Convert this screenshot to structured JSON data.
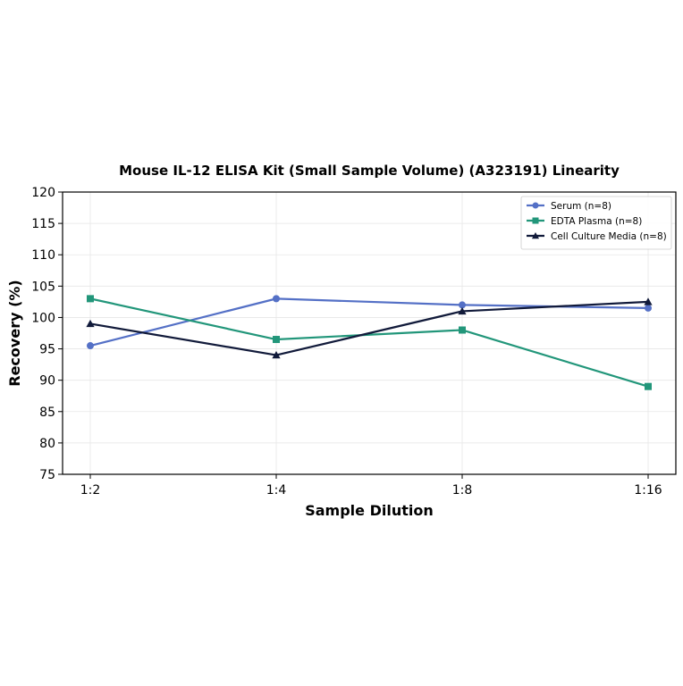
{
  "chart_data": {
    "type": "line",
    "title": "Mouse IL-12 ELISA Kit (Small Sample Volume) (A323191) Linearity",
    "xlabel": "Sample Dilution",
    "ylabel": "Recovery (%)",
    "categories": [
      "1:2",
      "1:4",
      "1:8",
      "1:16"
    ],
    "ylim": [
      75,
      120
    ],
    "yticks": [
      75,
      80,
      85,
      90,
      95,
      100,
      105,
      110,
      115,
      120
    ],
    "grid": true,
    "legend_position": "top-right",
    "series": [
      {
        "name": "Serum (n=8)",
        "values": [
          95.5,
          103.0,
          102.0,
          101.5
        ],
        "color": "#5470c6",
        "marker": "circle"
      },
      {
        "name": "EDTA Plasma (n=8)",
        "values": [
          103.0,
          96.5,
          98.0,
          89.0
        ],
        "color": "#22967a",
        "marker": "square"
      },
      {
        "name": "Cell Culture Media (n=8)",
        "values": [
          99.0,
          94.0,
          101.0,
          102.5
        ],
        "color": "#111a3a",
        "marker": "triangle"
      }
    ]
  }
}
